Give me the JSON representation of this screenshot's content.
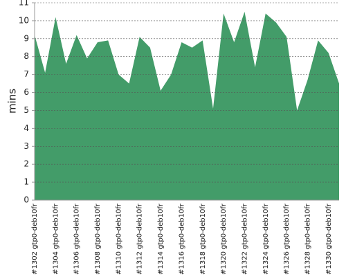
{
  "chart_data": {
    "type": "area",
    "y_label": "mins",
    "categories": [
      "#1302 gtp0-deb10fr",
      null,
      "#1304 gtp0-deb10fr",
      null,
      "#1306 gtp0-deb10fr",
      null,
      "#1308 gtp0-deb10fr",
      null,
      "#1310 gtp0-deb10fr",
      null,
      "#1312 gtp0-deb10fr",
      null,
      "#1314 gtp0-deb10fr",
      null,
      "#1316 gtp0-deb10fr",
      null,
      "#1318 gtp0-deb10fr",
      null,
      "#1320 gtp0-deb10fr",
      null,
      "#1322 gtp0-deb10fr",
      null,
      "#1324 gtp0-deb10fr",
      null,
      "#1326 gtp0-deb10fr",
      null,
      "#1328 gtp0-deb10fr",
      null,
      "#1330 gtp0-deb10fr",
      null
    ],
    "values": [
      9.2,
      7.1,
      10.2,
      7.6,
      9.2,
      7.9,
      8.8,
      8.9,
      7.0,
      6.5,
      9.1,
      8.5,
      6.1,
      7.0,
      8.8,
      8.5,
      8.9,
      5.1,
      10.4,
      8.8,
      10.5,
      7.4,
      10.4,
      9.9,
      9.1,
      5.0,
      6.7,
      8.9,
      8.2,
      6.5
    ],
    "color": "#439c69",
    "ylim": [
      0,
      11
    ],
    "yticks": [
      0,
      1,
      2,
      3,
      4,
      5,
      6,
      7,
      8,
      9,
      10,
      11
    ],
    "grid": true
  }
}
